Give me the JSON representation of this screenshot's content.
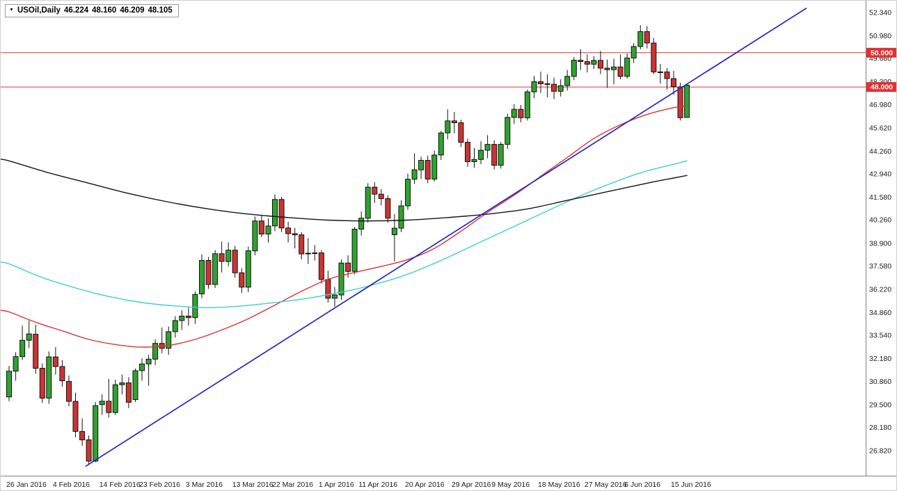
{
  "quote_bar": {
    "dropdown_icon": "▼",
    "symbol_label": "USOil,Daily",
    "open": "46.224",
    "high": "48.160",
    "low": "46.209",
    "close": "48.105"
  },
  "colors": {
    "background": "#ffffff",
    "up_candle": "#2ea32e",
    "down_candle": "#cc3333",
    "candle_outline": "#111111",
    "ma_fast": "#e03030",
    "ma_mid": "#3cd2c8",
    "ma_slow": "#141414",
    "trendline": "#2424cc",
    "price_line": "#e03030",
    "badge_bg": "#e03030",
    "badge_text": "#ffffff",
    "axis_text": "#1a1a1a",
    "axis_border": "#808080"
  },
  "chart_data": {
    "type": "candlestick",
    "title": "USOil Daily",
    "symbol": "USOil",
    "timeframe": "Daily",
    "grid": false,
    "y_axis": {
      "top_price": 52.34,
      "bottom_price": 26.82,
      "labels": [
        "52.340",
        "50.980",
        "49.660",
        "48.300",
        "46.980",
        "45.620",
        "44.260",
        "42.940",
        "41.580",
        "40.260",
        "38.900",
        "37.580",
        "36.220",
        "34.860",
        "33.540",
        "32.180",
        "30.860",
        "29.500",
        "28.180",
        "26.820"
      ]
    },
    "x_axis": {
      "labels": [
        {
          "text": "26 Jan 2016",
          "i": 0
        },
        {
          "text": "4 Feb 2016",
          "i": 7
        },
        {
          "text": "14 Feb 2016",
          "i": 14
        },
        {
          "text": "23 Feb 2016",
          "i": 20
        },
        {
          "text": "3 Mar 2016",
          "i": 27
        },
        {
          "text": "13 Mar 2016",
          "i": 34
        },
        {
          "text": "22 Mar 2016",
          "i": 40
        },
        {
          "text": "1 Apr 2016",
          "i": 47
        },
        {
          "text": "11 Apr 2016",
          "i": 53
        },
        {
          "text": "20 Apr 2016",
          "i": 60
        },
        {
          "text": "29 Apr 2016",
          "i": 67
        },
        {
          "text": "9 May 2016",
          "i": 73
        },
        {
          "text": "18 May 2016",
          "i": 80
        },
        {
          "text": "27 May 2016",
          "i": 87
        },
        {
          "text": "6 Jun 2016",
          "i": 93
        },
        {
          "text": "15 Jun 2016",
          "i": 100
        }
      ]
    },
    "price_lines": [
      {
        "price": 50.0,
        "label": "50.000"
      },
      {
        "price": 48.0,
        "label": "48.000"
      }
    ],
    "trendline": {
      "points": [
        [
          11.5,
          25.9
        ],
        [
          120,
          52.6
        ]
      ]
    },
    "moving_averages": [
      {
        "name": "ma-fast-red",
        "color_key": "ma_fast",
        "points": [
          [
            -1.5,
            35.0
          ],
          [
            0,
            34.9
          ],
          [
            4,
            34.3
          ],
          [
            8,
            33.8
          ],
          [
            12,
            33.3
          ],
          [
            16,
            33.0
          ],
          [
            20,
            32.85
          ],
          [
            24,
            32.95
          ],
          [
            28,
            33.3
          ],
          [
            32,
            33.85
          ],
          [
            36,
            34.5
          ],
          [
            40,
            35.3
          ],
          [
            44,
            36.1
          ],
          [
            48,
            36.8
          ],
          [
            52,
            37.2
          ],
          [
            56,
            37.55
          ],
          [
            60,
            37.95
          ],
          [
            64,
            38.6
          ],
          [
            68,
            39.6
          ],
          [
            72,
            40.7
          ],
          [
            76,
            41.7
          ],
          [
            80,
            42.8
          ],
          [
            84,
            43.9
          ],
          [
            88,
            45.0
          ],
          [
            92,
            45.8
          ],
          [
            96,
            46.4
          ],
          [
            100,
            46.8
          ],
          [
            102,
            46.9
          ]
        ]
      },
      {
        "name": "ma-mid-cyan",
        "color_key": "ma_mid",
        "points": [
          [
            -1.5,
            37.8
          ],
          [
            0,
            37.7
          ],
          [
            5,
            36.9
          ],
          [
            10,
            36.3
          ],
          [
            15,
            35.8
          ],
          [
            20,
            35.45
          ],
          [
            25,
            35.25
          ],
          [
            30,
            35.15
          ],
          [
            35,
            35.25
          ],
          [
            40,
            35.45
          ],
          [
            45,
            35.7
          ],
          [
            50,
            36.05
          ],
          [
            55,
            36.5
          ],
          [
            60,
            37.1
          ],
          [
            65,
            37.9
          ],
          [
            70,
            38.8
          ],
          [
            75,
            39.7
          ],
          [
            80,
            40.6
          ],
          [
            85,
            41.5
          ],
          [
            90,
            42.3
          ],
          [
            95,
            43.0
          ],
          [
            100,
            43.5
          ],
          [
            102,
            43.7
          ]
        ]
      },
      {
        "name": "ma-slow-black",
        "color_key": "ma_slow",
        "points": [
          [
            -1.5,
            43.8
          ],
          [
            0,
            43.7
          ],
          [
            6,
            43.0
          ],
          [
            12,
            42.4
          ],
          [
            18,
            41.8
          ],
          [
            24,
            41.3
          ],
          [
            30,
            40.9
          ],
          [
            36,
            40.6
          ],
          [
            42,
            40.4
          ],
          [
            48,
            40.25
          ],
          [
            54,
            40.2
          ],
          [
            60,
            40.25
          ],
          [
            66,
            40.4
          ],
          [
            72,
            40.6
          ],
          [
            78,
            40.9
          ],
          [
            84,
            41.4
          ],
          [
            90,
            41.9
          ],
          [
            96,
            42.4
          ],
          [
            100,
            42.7
          ],
          [
            102,
            42.85
          ]
        ]
      }
    ],
    "candle_format": [
      "date",
      "open",
      "high",
      "low",
      "close"
    ],
    "candles": [
      [
        "26 Jan",
        29.95,
        31.75,
        29.7,
        31.45
      ],
      [
        "27 Jan",
        31.45,
        32.55,
        30.9,
        32.3
      ],
      [
        "28 Jan",
        32.3,
        34.1,
        32.1,
        33.25
      ],
      [
        "29 Jan",
        33.25,
        34.4,
        32.8,
        33.62
      ],
      [
        "1 Feb",
        33.6,
        34.15,
        31.3,
        31.62
      ],
      [
        "2 Feb",
        31.62,
        31.9,
        29.6,
        29.88
      ],
      [
        "3 Feb",
        29.88,
        32.6,
        29.55,
        32.28
      ],
      [
        "4 Feb",
        32.28,
        32.85,
        31.25,
        31.72
      ],
      [
        "5 Feb",
        31.72,
        32.1,
        30.55,
        30.89
      ],
      [
        "8 Feb",
        30.85,
        31.2,
        29.4,
        29.69
      ],
      [
        "9 Feb",
        29.69,
        30.2,
        27.6,
        27.94
      ],
      [
        "10 Feb",
        27.94,
        28.7,
        27.1,
        27.45
      ],
      [
        "11 Feb",
        27.45,
        27.7,
        26.05,
        26.21
      ],
      [
        "12 Feb",
        26.21,
        29.65,
        26.15,
        29.44
      ],
      [
        "15 Feb",
        29.5,
        30.1,
        28.9,
        29.7
      ],
      [
        "16 Feb",
        29.7,
        31.0,
        28.75,
        29.04
      ],
      [
        "17 Feb",
        29.04,
        30.95,
        28.9,
        30.66
      ],
      [
        "18 Feb",
        30.66,
        31.25,
        30.1,
        30.77
      ],
      [
        "19 Feb",
        30.77,
        31.1,
        29.3,
        29.64
      ],
      [
        "22 Feb",
        29.8,
        31.6,
        29.65,
        31.48
      ],
      [
        "23 Feb",
        31.48,
        32.2,
        30.9,
        31.87
      ],
      [
        "24 Feb",
        31.87,
        32.4,
        30.6,
        32.15
      ],
      [
        "25 Feb",
        32.15,
        33.3,
        31.8,
        33.07
      ],
      [
        "26 Feb",
        33.07,
        34.0,
        32.5,
        32.78
      ],
      [
        "29 Feb",
        32.78,
        34.05,
        32.4,
        33.75
      ],
      [
        "1 Mar",
        33.75,
        34.65,
        33.4,
        34.4
      ],
      [
        "2 Mar",
        34.4,
        35.0,
        33.85,
        34.66
      ],
      [
        "3 Mar",
        34.66,
        35.15,
        34.1,
        34.57
      ],
      [
        "4 Mar",
        34.57,
        36.1,
        34.2,
        35.92
      ],
      [
        "7 Mar",
        35.95,
        38.25,
        35.7,
        37.9
      ],
      [
        "8 Mar",
        37.9,
        38.1,
        36.25,
        36.5
      ],
      [
        "9 Mar",
        36.5,
        38.5,
        36.3,
        38.29
      ],
      [
        "10 Mar",
        38.29,
        39.0,
        37.2,
        37.84
      ],
      [
        "11 Mar",
        37.84,
        38.95,
        37.55,
        38.5
      ],
      [
        "14 Mar",
        38.5,
        38.75,
        36.9,
        37.18
      ],
      [
        "15 Mar",
        37.18,
        37.45,
        36.0,
        36.34
      ],
      [
        "16 Mar",
        36.34,
        38.7,
        36.05,
        38.46
      ],
      [
        "17 Mar",
        38.46,
        40.45,
        38.2,
        40.2
      ],
      [
        "18 Mar",
        40.2,
        40.55,
        39.25,
        39.44
      ],
      [
        "21 Mar",
        39.44,
        40.35,
        38.95,
        39.91
      ],
      [
        "22 Mar",
        39.91,
        41.75,
        39.6,
        41.45
      ],
      [
        "23 Mar",
        41.45,
        41.6,
        39.55,
        39.79
      ],
      [
        "24 Mar",
        39.79,
        40.15,
        38.95,
        39.46
      ],
      [
        "28 Mar",
        39.46,
        39.8,
        38.6,
        39.39
      ],
      [
        "29 Mar",
        39.39,
        39.55,
        37.95,
        38.28
      ],
      [
        "30 Mar",
        38.28,
        39.2,
        37.7,
        38.32
      ],
      [
        "31 Mar",
        38.32,
        38.8,
        37.9,
        38.34
      ],
      [
        "1 Apr",
        38.34,
        38.5,
        36.55,
        36.79
      ],
      [
        "4 Apr",
        36.79,
        37.3,
        35.45,
        35.7
      ],
      [
        "5 Apr",
        35.7,
        36.35,
        35.2,
        35.89
      ],
      [
        "6 Apr",
        35.89,
        37.95,
        35.6,
        37.75
      ],
      [
        "7 Apr",
        37.75,
        38.2,
        36.9,
        37.26
      ],
      [
        "8 Apr",
        37.26,
        39.85,
        37.1,
        39.72
      ],
      [
        "11 Apr",
        39.72,
        40.75,
        39.35,
        40.36
      ],
      [
        "12 Apr",
        40.36,
        42.4,
        40.1,
        42.17
      ],
      [
        "13 Apr",
        42.17,
        42.45,
        41.25,
        41.76
      ],
      [
        "14 Apr",
        41.76,
        42.05,
        41.1,
        41.5
      ],
      [
        "15 Apr",
        41.5,
        41.7,
        40.1,
        40.36
      ],
      [
        "18 Apr",
        39.4,
        40.6,
        37.85,
        39.78
      ],
      [
        "19 Apr",
        39.78,
        41.4,
        39.55,
        41.08
      ],
      [
        "20 Apr",
        41.08,
        42.95,
        40.85,
        42.63
      ],
      [
        "21 Apr",
        42.63,
        44.15,
        42.35,
        43.18
      ],
      [
        "22 Apr",
        43.18,
        43.95,
        42.65,
        43.73
      ],
      [
        "25 Apr",
        43.73,
        44.0,
        42.4,
        42.64
      ],
      [
        "26 Apr",
        42.64,
        44.3,
        42.5,
        44.04
      ],
      [
        "27 Apr",
        44.04,
        45.45,
        43.75,
        45.33
      ],
      [
        "28 Apr",
        45.33,
        46.7,
        44.95,
        46.03
      ],
      [
        "29 Apr",
        46.03,
        46.55,
        45.3,
        45.92
      ],
      [
        "2 May",
        45.92,
        46.1,
        44.5,
        44.78
      ],
      [
        "3 May",
        44.78,
        45.0,
        43.35,
        43.65
      ],
      [
        "4 May",
        43.65,
        44.45,
        43.3,
        43.78
      ],
      [
        "5 May",
        43.78,
        44.85,
        43.5,
        44.32
      ],
      [
        "6 May",
        44.32,
        45.2,
        43.85,
        44.66
      ],
      [
        "9 May",
        44.66,
        44.9,
        43.2,
        43.44
      ],
      [
        "10 May",
        43.44,
        44.8,
        43.25,
        44.66
      ],
      [
        "11 May",
        44.66,
        46.45,
        44.4,
        46.23
      ],
      [
        "12 May",
        46.23,
        47.0,
        45.85,
        46.7
      ],
      [
        "13 May",
        46.7,
        46.95,
        45.95,
        46.21
      ],
      [
        "16 May",
        46.21,
        47.85,
        46.05,
        47.72
      ],
      [
        "17 May",
        47.72,
        48.65,
        47.35,
        48.31
      ],
      [
        "18 May",
        48.31,
        48.9,
        47.65,
        48.19
      ],
      [
        "19 May",
        48.19,
        48.75,
        47.4,
        48.16
      ],
      [
        "20 May",
        48.16,
        48.55,
        47.3,
        47.75
      ],
      [
        "23 May",
        47.75,
        48.45,
        47.45,
        48.08
      ],
      [
        "24 May",
        48.08,
        49.0,
        47.8,
        48.62
      ],
      [
        "25 May",
        48.62,
        49.75,
        48.4,
        49.56
      ],
      [
        "26 May",
        49.56,
        50.2,
        49.0,
        49.48
      ],
      [
        "27 May",
        49.48,
        49.9,
        48.85,
        49.33
      ],
      [
        "30 May",
        49.33,
        49.8,
        49.05,
        49.55
      ],
      [
        "31 May",
        49.55,
        50.1,
        48.75,
        49.1
      ],
      [
        "1 Jun",
        49.1,
        49.6,
        47.95,
        49.01
      ],
      [
        "2 Jun",
        49.01,
        49.65,
        48.15,
        49.17
      ],
      [
        "3 Jun",
        49.17,
        49.9,
        48.45,
        48.62
      ],
      [
        "6 Jun",
        48.62,
        49.95,
        48.5,
        49.69
      ],
      [
        "7 Jun",
        49.69,
        50.55,
        49.4,
        50.36
      ],
      [
        "8 Jun",
        50.36,
        51.6,
        50.2,
        51.23
      ],
      [
        "9 Jun",
        51.23,
        51.55,
        50.25,
        50.56
      ],
      [
        "10 Jun",
        50.56,
        50.85,
        48.75,
        48.88
      ],
      [
        "13 Jun",
        48.88,
        49.35,
        48.2,
        48.88
      ],
      [
        "14 Jun",
        48.88,
        49.1,
        47.85,
        48.49
      ],
      [
        "15 Jun",
        48.49,
        48.95,
        47.55,
        48.01
      ],
      [
        "16 Jun",
        48.01,
        48.25,
        46.05,
        46.21
      ],
      [
        "17 Jun",
        46.224,
        48.16,
        46.209,
        48.105
      ]
    ]
  }
}
